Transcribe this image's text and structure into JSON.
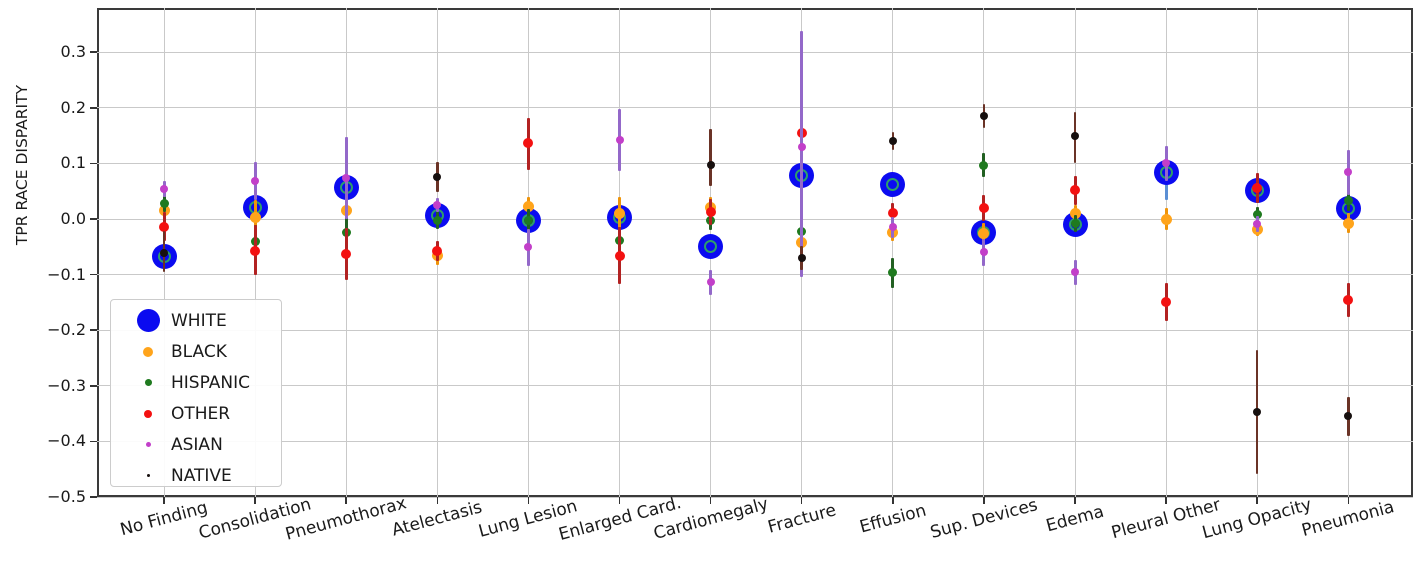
{
  "chart_data": {
    "type": "scatter",
    "title": "",
    "xlabel": "",
    "ylabel": "TPR RACE DISPARITY",
    "ylim": [
      -0.5,
      0.38
    ],
    "grid": true,
    "legend_position": "lower left",
    "ytick_labels": [
      "0.3",
      "0.2",
      "0.1",
      "0.0",
      "−0.1",
      "−0.2",
      "−0.3",
      "−0.4",
      "−0.5"
    ],
    "yticks": [
      0.3,
      0.2,
      0.1,
      0.0,
      -0.1,
      -0.2,
      -0.3,
      -0.4,
      -0.5
    ],
    "categories": [
      "No Finding",
      "Consolidation",
      "Pneumothorax",
      "Atelectasis",
      "Lung Lesion",
      "Enlarged Card.",
      "Cardiomegaly",
      "Fracture",
      "Effusion",
      "Sup. Devices",
      "Edema",
      "Pleural Other",
      "Lung Opacity",
      "Pneumonia"
    ],
    "series": [
      {
        "name": "WHITE",
        "color": "#0b0bf0",
        "bar_color": "#5b8fd4",
        "marker_size": 25,
        "legend_size": 23,
        "ring_color": "#2d9e6b",
        "values": [
          -0.068,
          0.02,
          0.057,
          0.007,
          -0.002,
          0.002,
          -0.05,
          0.079,
          0.062,
          -0.024,
          -0.01,
          0.084,
          0.051,
          0.018
        ],
        "err_low": [
          -0.08,
          0.006,
          0.048,
          0.0,
          -0.008,
          -0.006,
          -0.058,
          0.064,
          0.056,
          -0.031,
          -0.017,
          0.035,
          0.044,
          0.007
        ],
        "err_high": [
          -0.056,
          0.034,
          0.066,
          0.014,
          0.004,
          0.01,
          -0.042,
          0.094,
          0.068,
          -0.017,
          -0.003,
          0.13,
          0.058,
          0.029
        ]
      },
      {
        "name": "BLACK",
        "color": "#ffa41b",
        "bar_color": "#ef940a",
        "marker_size": 11,
        "legend_size": 10,
        "values": [
          0.016,
          0.003,
          0.015,
          -0.066,
          0.022,
          0.01,
          0.02,
          -0.043,
          -0.024,
          -0.026,
          0.009,
          0.0,
          -0.018,
          -0.008
        ],
        "err_low": [
          0.004,
          -0.029,
          -0.012,
          -0.082,
          0.004,
          -0.021,
          0.001,
          -0.074,
          -0.04,
          -0.044,
          -0.007,
          -0.019,
          -0.031,
          -0.026
        ],
        "err_high": [
          0.028,
          0.035,
          0.042,
          -0.05,
          0.04,
          0.04,
          0.039,
          -0.012,
          -0.008,
          -0.008,
          0.025,
          0.019,
          -0.005,
          0.01
        ]
      },
      {
        "name": "HISPANIC",
        "color": "#1f7a1f",
        "bar_color": "#226022",
        "marker_size": 9,
        "legend_size": 7,
        "values": [
          0.027,
          -0.04,
          -0.024,
          -0.002,
          -0.002,
          -0.039,
          -0.002,
          -0.022,
          -0.097,
          0.097,
          -0.008,
          null,
          0.008,
          0.033
        ],
        "err_low": [
          0.013,
          -0.07,
          -0.052,
          -0.018,
          -0.022,
          -0.064,
          -0.019,
          -0.054,
          -0.125,
          0.076,
          -0.024,
          null,
          -0.006,
          0.014
        ],
        "err_high": [
          0.041,
          -0.01,
          0.004,
          0.014,
          0.018,
          -0.014,
          0.015,
          0.01,
          -0.071,
          0.118,
          0.008,
          null,
          0.022,
          0.052
        ]
      },
      {
        "name": "OTHER",
        "color": "#f31111",
        "bar_color": "#b22222",
        "marker_size": 10,
        "legend_size": 8,
        "values": [
          -0.014,
          -0.057,
          -0.063,
          -0.057,
          0.136,
          -0.066,
          0.013,
          0.154,
          0.01,
          0.02,
          0.052,
          -0.15,
          0.055,
          -0.146
        ],
        "err_low": [
          -0.04,
          -0.1,
          -0.11,
          -0.075,
          0.089,
          -0.117,
          -0.01,
          0.105,
          -0.009,
          -0.004,
          0.026,
          -0.184,
          0.028,
          -0.176
        ],
        "err_high": [
          0.012,
          -0.01,
          -0.016,
          -0.039,
          0.182,
          -0.015,
          0.036,
          0.203,
          0.029,
          0.044,
          0.078,
          -0.115,
          0.082,
          -0.116
        ]
      },
      {
        "name": "ASIAN",
        "color": "#c23fc9",
        "bar_color": "#9368c9",
        "marker_size": 8,
        "legend_size": 5,
        "values": [
          0.054,
          0.069,
          0.073,
          0.025,
          -0.051,
          0.142,
          -0.114,
          0.129,
          -0.015,
          -0.06,
          -0.096,
          0.1,
          -0.009,
          0.084
        ],
        "err_low": [
          0.04,
          0.035,
          0.0,
          0.012,
          -0.084,
          0.087,
          -0.136,
          -0.104,
          -0.034,
          -0.084,
          -0.119,
          0.068,
          -0.023,
          0.044
        ],
        "err_high": [
          0.068,
          0.103,
          0.147,
          0.038,
          -0.018,
          0.197,
          -0.092,
          0.338,
          0.004,
          -0.036,
          -0.073,
          0.131,
          0.005,
          0.124
        ]
      },
      {
        "name": "NATIVE",
        "color": "#17100f",
        "bar_color": "#6a3326",
        "marker_size": 8,
        "legend_size": 3,
        "values": [
          -0.062,
          null,
          null,
          0.075,
          null,
          null,
          0.098,
          -0.07,
          0.141,
          0.185,
          0.149,
          null,
          -0.347,
          -0.355
        ],
        "err_low": [
          -0.095,
          null,
          null,
          0.048,
          null,
          null,
          0.059,
          -0.091,
          0.124,
          0.164,
          0.1,
          null,
          -0.458,
          -0.39
        ],
        "err_high": [
          -0.022,
          null,
          null,
          0.103,
          null,
          null,
          0.161,
          -0.049,
          0.157,
          0.206,
          0.193,
          null,
          -0.236,
          -0.32
        ]
      }
    ]
  }
}
